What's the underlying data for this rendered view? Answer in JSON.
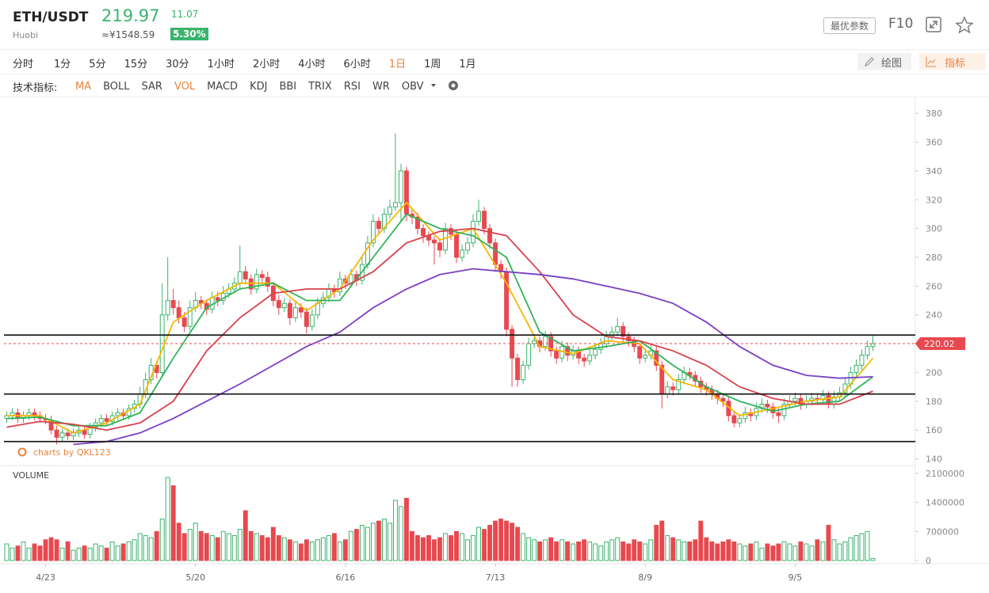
{
  "header": {
    "symbol": "ETH/USDT",
    "exchange": "Huobi",
    "price": "219.97",
    "change": "11.07",
    "cny": "≈¥1548.59",
    "change_pct": "5.30%",
    "button": "最优参数",
    "f10": "F10"
  },
  "timeframes": {
    "items": [
      "分时",
      "1分",
      "5分",
      "15分",
      "30分",
      "1小时",
      "2小时",
      "4小时",
      "6小时",
      "1日",
      "1周",
      "1月"
    ],
    "active": 9
  },
  "tools": {
    "draw": "绘图",
    "indicator": "指标"
  },
  "indicators": {
    "label": "技术指标:",
    "items": [
      "MA",
      "BOLL",
      "SAR",
      "VOL",
      "MACD",
      "KDJ",
      "BBI",
      "TRIX",
      "RSI",
      "WR",
      "OBV"
    ],
    "active": [
      0,
      3
    ]
  },
  "watermark": "charts by QKL123",
  "chart_data": {
    "type": "candlestick",
    "up_color": "#3bb36e",
    "down_color": "#e8484f",
    "categories": [
      null,
      null,
      null,
      null,
      null,
      null,
      null,
      "4/23",
      null,
      null,
      null,
      null,
      null,
      null,
      null,
      null,
      null,
      null,
      null,
      null,
      null,
      null,
      null,
      null,
      null,
      null,
      null,
      null,
      null,
      null,
      null,
      null,
      null,
      null,
      "5/20",
      null,
      null,
      null,
      null,
      null,
      null,
      null,
      null,
      null,
      null,
      null,
      null,
      null,
      null,
      null,
      null,
      null,
      null,
      null,
      null,
      null,
      null,
      null,
      null,
      null,
      null,
      "6/16",
      null,
      null,
      null,
      null,
      null,
      null,
      null,
      null,
      null,
      null,
      null,
      null,
      null,
      null,
      null,
      null,
      null,
      null,
      null,
      null,
      null,
      null,
      null,
      null,
      null,
      null,
      "7/13",
      null,
      null,
      null,
      null,
      null,
      null,
      null,
      null,
      null,
      null,
      null,
      null,
      null,
      null,
      null,
      null,
      null,
      null,
      null,
      null,
      null,
      null,
      null,
      null,
      null,
      null,
      "8/9",
      null,
      null,
      null,
      null,
      null,
      null,
      null,
      null,
      null,
      null,
      null,
      null,
      null,
      null,
      null,
      null,
      null,
      null,
      null,
      null,
      null,
      null,
      null,
      null,
      null,
      null,
      "9/5",
      null,
      null,
      null,
      null,
      null,
      null,
      null,
      null,
      null,
      null,
      null,
      null,
      null,
      null
    ],
    "candles": [
      [
        168,
        173,
        165,
        170
      ],
      [
        170,
        175,
        167,
        172
      ],
      [
        172,
        175,
        165,
        168
      ],
      [
        168,
        173,
        165,
        170
      ],
      [
        170,
        175,
        167,
        172
      ],
      [
        172,
        175,
        167,
        170
      ],
      [
        170,
        173,
        165,
        168
      ],
      [
        168,
        171,
        164,
        167
      ],
      [
        167,
        170,
        157,
        160
      ],
      [
        160,
        163,
        150,
        155
      ],
      [
        155,
        161,
        152,
        158
      ],
      [
        158,
        161,
        153,
        156
      ],
      [
        156,
        161,
        153,
        158
      ],
      [
        158,
        163,
        155,
        160
      ],
      [
        160,
        163,
        154,
        157
      ],
      [
        157,
        165,
        154,
        162
      ],
      [
        162,
        168,
        159,
        165
      ],
      [
        165,
        171,
        162,
        168
      ],
      [
        168,
        171,
        163,
        166
      ],
      [
        166,
        173,
        163,
        170
      ],
      [
        170,
        175,
        167,
        172
      ],
      [
        172,
        175,
        167,
        170
      ],
      [
        170,
        178,
        167,
        175
      ],
      [
        175,
        181,
        172,
        178
      ],
      [
        178,
        190,
        175,
        185
      ],
      [
        185,
        200,
        182,
        195
      ],
      [
        195,
        210,
        192,
        205
      ],
      [
        205,
        208,
        196,
        200
      ],
      [
        200,
        262,
        198,
        240
      ],
      [
        240,
        280,
        236,
        250
      ],
      [
        250,
        258,
        240,
        245
      ],
      [
        245,
        250,
        234,
        238
      ],
      [
        238,
        242,
        228,
        232
      ],
      [
        232,
        250,
        229,
        245
      ],
      [
        245,
        256,
        242,
        250
      ],
      [
        250,
        253,
        244,
        248
      ],
      [
        248,
        251,
        240,
        244
      ],
      [
        244,
        256,
        241,
        252
      ],
      [
        252,
        256,
        246,
        250
      ],
      [
        250,
        260,
        247,
        255
      ],
      [
        255,
        262,
        252,
        258
      ],
      [
        258,
        266,
        255,
        262
      ],
      [
        262,
        288,
        258,
        270
      ],
      [
        270,
        274,
        261,
        265
      ],
      [
        265,
        268,
        254,
        258
      ],
      [
        258,
        272,
        255,
        268
      ],
      [
        268,
        271,
        262,
        266
      ],
      [
        266,
        270,
        256,
        260
      ],
      [
        260,
        263,
        246,
        250
      ],
      [
        250,
        254,
        240,
        245
      ],
      [
        245,
        252,
        242,
        248
      ],
      [
        248,
        251,
        233,
        238
      ],
      [
        238,
        249,
        235,
        245
      ],
      [
        245,
        248,
        238,
        242
      ],
      [
        242,
        245,
        227,
        232
      ],
      [
        232,
        244,
        229,
        240
      ],
      [
        240,
        252,
        237,
        248
      ],
      [
        248,
        256,
        245,
        252
      ],
      [
        252,
        262,
        249,
        258
      ],
      [
        258,
        261,
        252,
        256
      ],
      [
        256,
        270,
        253,
        265
      ],
      [
        265,
        268,
        258,
        262
      ],
      [
        262,
        272,
        259,
        268
      ],
      [
        268,
        271,
        260,
        264
      ],
      [
        264,
        280,
        261,
        275
      ],
      [
        275,
        295,
        272,
        290
      ],
      [
        290,
        310,
        287,
        305
      ],
      [
        305,
        308,
        296,
        300
      ],
      [
        300,
        314,
        297,
        310
      ],
      [
        310,
        320,
        307,
        315
      ],
      [
        315,
        366,
        312,
        318
      ],
      [
        318,
        345,
        305,
        340
      ],
      [
        340,
        343,
        305,
        310
      ],
      [
        310,
        313,
        303,
        308
      ],
      [
        308,
        311,
        296,
        300
      ],
      [
        300,
        303,
        290,
        295
      ],
      [
        295,
        298,
        288,
        292
      ],
      [
        292,
        295,
        275,
        290
      ],
      [
        290,
        293,
        280,
        285
      ],
      [
        285,
        304,
        282,
        300
      ],
      [
        300,
        303,
        292,
        296
      ],
      [
        296,
        299,
        276,
        280
      ],
      [
        280,
        289,
        277,
        285
      ],
      [
        285,
        294,
        282,
        290
      ],
      [
        290,
        310,
        287,
        305
      ],
      [
        305,
        320,
        302,
        312
      ],
      [
        312,
        315,
        296,
        300
      ],
      [
        300,
        303,
        286,
        290
      ],
      [
        290,
        293,
        270,
        275
      ],
      [
        275,
        278,
        265,
        270
      ],
      [
        270,
        273,
        225,
        230
      ],
      [
        230,
        233,
        190,
        210
      ],
      [
        210,
        213,
        190,
        195
      ],
      [
        195,
        208,
        192,
        205
      ],
      [
        205,
        224,
        202,
        220
      ],
      [
        220,
        226,
        217,
        222
      ],
      [
        222,
        225,
        214,
        218
      ],
      [
        218,
        229,
        215,
        225
      ],
      [
        225,
        228,
        211,
        215
      ],
      [
        215,
        218,
        206,
        210
      ],
      [
        210,
        222,
        207,
        218
      ],
      [
        218,
        221,
        208,
        212
      ],
      [
        212,
        219,
        209,
        215
      ],
      [
        215,
        218,
        206,
        210
      ],
      [
        210,
        213,
        204,
        208
      ],
      [
        208,
        216,
        205,
        212
      ],
      [
        212,
        220,
        209,
        216
      ],
      [
        216,
        224,
        213,
        220
      ],
      [
        220,
        229,
        217,
        225
      ],
      [
        225,
        232,
        222,
        228
      ],
      [
        228,
        238,
        225,
        232
      ],
      [
        232,
        235,
        221,
        225
      ],
      [
        225,
        228,
        218,
        222
      ],
      [
        222,
        225,
        214,
        218
      ],
      [
        218,
        221,
        206,
        210
      ],
      [
        210,
        216,
        207,
        212
      ],
      [
        212,
        219,
        209,
        215
      ],
      [
        215,
        218,
        201,
        205
      ],
      [
        205,
        208,
        175,
        185
      ],
      [
        185,
        194,
        182,
        190
      ],
      [
        190,
        193,
        184,
        188
      ],
      [
        188,
        199,
        185,
        195
      ],
      [
        195,
        204,
        192,
        200
      ],
      [
        200,
        203,
        195,
        198
      ],
      [
        198,
        201,
        190,
        194
      ],
      [
        194,
        197,
        186,
        190
      ],
      [
        190,
        193,
        184,
        188
      ],
      [
        188,
        191,
        181,
        185
      ],
      [
        185,
        188,
        178,
        182
      ],
      [
        182,
        185,
        176,
        180
      ],
      [
        180,
        183,
        166,
        170
      ],
      [
        170,
        173,
        162,
        165
      ],
      [
        165,
        171,
        162,
        168
      ],
      [
        168,
        176,
        165,
        172
      ],
      [
        172,
        175,
        166,
        170
      ],
      [
        170,
        179,
        167,
        175
      ],
      [
        175,
        182,
        172,
        178
      ],
      [
        178,
        181,
        172,
        176
      ],
      [
        176,
        179,
        168,
        172
      ],
      [
        172,
        175,
        165,
        170
      ],
      [
        170,
        182,
        167,
        178
      ],
      [
        178,
        184,
        175,
        180
      ],
      [
        180,
        186,
        177,
        182
      ],
      [
        182,
        185,
        174,
        178
      ],
      [
        178,
        184,
        175,
        180
      ],
      [
        180,
        186,
        177,
        182
      ],
      [
        182,
        185,
        178,
        181
      ],
      [
        181,
        188,
        178,
        184
      ],
      [
        184,
        187,
        175,
        178
      ],
      [
        178,
        187,
        175,
        183
      ],
      [
        183,
        190,
        180,
        186
      ],
      [
        186,
        196,
        183,
        192
      ],
      [
        192,
        204,
        189,
        200
      ],
      [
        200,
        209,
        197,
        205
      ],
      [
        205,
        216,
        202,
        212
      ],
      [
        212,
        222,
        209,
        218
      ],
      [
        218,
        226,
        215,
        220
      ]
    ],
    "ma_lines": [
      {
        "color": "#f5b800",
        "values": [
          170,
          170,
          158,
          165,
          178,
          235,
          250,
          262,
          262,
          243,
          258,
          292,
          318,
          292,
          300,
          262,
          218,
          213,
          222,
          220,
          195,
          188,
          170,
          175,
          180,
          183,
          210
        ]
      },
      {
        "color": "#2fb35a",
        "values": [
          168,
          169,
          163,
          163,
          172,
          210,
          245,
          258,
          262,
          250,
          250,
          280,
          310,
          300,
          295,
          280,
          228,
          215,
          218,
          222,
          205,
          190,
          180,
          173,
          178,
          180,
          197
        ]
      },
      {
        "color": "#d9414a",
        "values": [
          162,
          166,
          164,
          160,
          165,
          180,
          215,
          238,
          255,
          258,
          258,
          270,
          290,
          298,
          300,
          295,
          270,
          240,
          225,
          222,
          215,
          205,
          190,
          182,
          178,
          178,
          187
        ]
      },
      {
        "color": "#7b3fc4",
        "values": [
          null,
          null,
          150,
          152,
          158,
          168,
          180,
          192,
          205,
          218,
          228,
          245,
          258,
          268,
          272,
          270,
          268,
          265,
          260,
          255,
          248,
          235,
          218,
          205,
          198,
          196,
          197
        ]
      }
    ],
    "levels": [
      226,
      185,
      152
    ],
    "last_price": 220.02,
    "ylim": [
      137,
      390
    ],
    "yticks": [
      140,
      160,
      180,
      200,
      220,
      240,
      260,
      280,
      300,
      320,
      340,
      360,
      380
    ],
    "volume_label": "VOLUME",
    "volumes": [
      400000,
      300000,
      350000,
      450000,
      300000,
      400000,
      350000,
      500000,
      550000,
      500000,
      300000,
      450000,
      250000,
      300000,
      350000,
      300000,
      400000,
      350000,
      300000,
      450000,
      350000,
      400000,
      450000,
      500000,
      650000,
      600000,
      550000,
      700000,
      1000000,
      2000000,
      1800000,
      900000,
      650000,
      750000,
      900000,
      700000,
      650000,
      600000,
      550000,
      700000,
      650000,
      600000,
      750000,
      1200000,
      700000,
      650000,
      600000,
      550000,
      800000,
      600000,
      550000,
      500000,
      450000,
      400000,
      500000,
      450000,
      500000,
      550000,
      600000,
      650000,
      450000,
      500000,
      700000,
      750000,
      850000,
      800000,
      900000,
      950000,
      1000000,
      900000,
      1450000,
      1300000,
      1500000,
      700000,
      600000,
      550000,
      600000,
      500000,
      550000,
      650000,
      600000,
      700000,
      650000,
      500000,
      600000,
      800000,
      750000,
      850000,
      950000,
      1000000,
      950000,
      900000,
      800000,
      650000,
      550000,
      500000,
      450000,
      500000,
      550000,
      450000,
      500000,
      450000,
      400000,
      450000,
      500000,
      450000,
      400000,
      350000,
      450000,
      500000,
      550000,
      450000,
      400000,
      500000,
      450000,
      400000,
      500000,
      850000,
      950000,
      600000,
      550000,
      500000,
      450000,
      450000,
      500000,
      950000,
      550000,
      450000,
      400000,
      450000,
      500000,
      450000,
      400000,
      350000,
      400000,
      450000,
      300000,
      400000,
      350000,
      400000,
      450000,
      400000,
      350000,
      450000,
      400000,
      350000,
      500000,
      450000,
      850000,
      500000,
      400000,
      450000,
      550000,
      600000,
      650000,
      700000,
      50000
    ],
    "vlim": [
      0,
      2250000
    ],
    "vticks": [
      0,
      700000,
      1400000,
      2100000
    ]
  }
}
